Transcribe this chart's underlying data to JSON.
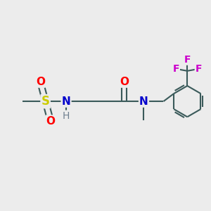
{
  "background_color": "#ececec",
  "bond_color": "#3a5a5a",
  "F_color": "#cc00cc",
  "N_color": "#0000cc",
  "O_color": "#ff0000",
  "S_color": "#cccc00",
  "H_color": "#708090",
  "figsize": [
    3.0,
    3.0
  ],
  "dpi": 100,
  "xlim": [
    0,
    10
  ],
  "ylim": [
    0,
    10
  ]
}
